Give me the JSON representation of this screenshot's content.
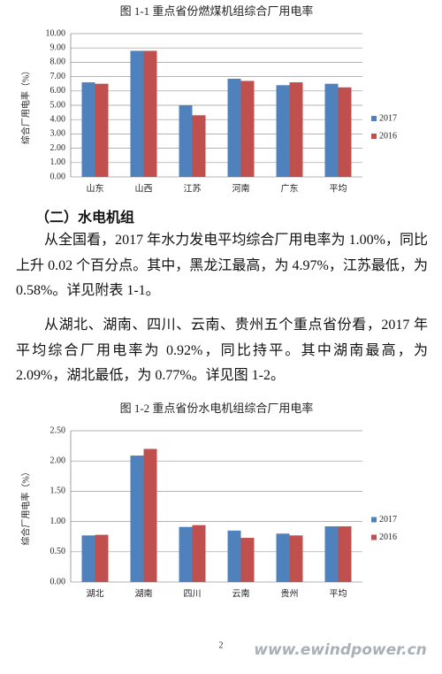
{
  "chart_data": [
    {
      "type": "bar",
      "title": "图 1-1 重点省份燃煤机组综合厂用电率",
      "y_label": "综合厂用电率（%）",
      "categories": [
        "山东",
        "山西",
        "江苏",
        "河南",
        "广东",
        "平均"
      ],
      "series": [
        {
          "name": "2017",
          "color": "#4f81bd",
          "values": [
            6.6,
            8.8,
            5.0,
            6.85,
            6.4,
            6.5
          ]
        },
        {
          "name": "2016",
          "color": "#c0504d",
          "values": [
            6.5,
            8.8,
            4.3,
            6.7,
            6.6,
            6.25
          ]
        }
      ],
      "ylim": [
        0,
        10
      ],
      "yticks": [
        {
          "value": 0,
          "label": "0.00"
        },
        {
          "value": 1,
          "label": "1.00"
        },
        {
          "value": 2,
          "label": "2.00"
        },
        {
          "value": 3,
          "label": "3.00"
        },
        {
          "value": 4,
          "label": "4.00"
        },
        {
          "value": 5,
          "label": "5.00"
        },
        {
          "value": 6,
          "label": "6.00"
        },
        {
          "value": 7,
          "label": "7.00"
        },
        {
          "value": 8,
          "label": "8.00"
        },
        {
          "value": 9,
          "label": "9.00"
        },
        {
          "value": 10,
          "label": "10.00"
        }
      ],
      "grid": true,
      "legend": "right"
    },
    {
      "type": "bar",
      "title": "图 1-2 重点省份水电机组综合厂用电率",
      "y_label": "综合厂用电率（%）",
      "categories": [
        "湖北",
        "湖南",
        "四川",
        "云南",
        "贵州",
        "平均"
      ],
      "series": [
        {
          "name": "2017",
          "color": "#4f81bd",
          "values": [
            0.77,
            2.09,
            0.91,
            0.85,
            0.8,
            0.92
          ]
        },
        {
          "name": "2016",
          "color": "#c0504d",
          "values": [
            0.78,
            2.2,
            0.94,
            0.73,
            0.77,
            0.92
          ]
        }
      ],
      "ylim": [
        0,
        2.5
      ],
      "yticks": [
        {
          "value": 0,
          "label": "0.00"
        },
        {
          "value": 0.5,
          "label": "0.50"
        },
        {
          "value": 1,
          "label": "1.00"
        },
        {
          "value": 1.5,
          "label": "1.50"
        },
        {
          "value": 2,
          "label": "2.00"
        },
        {
          "value": 2.5,
          "label": "2.50"
        }
      ],
      "grid": true,
      "legend": "right"
    }
  ],
  "document": {
    "heading": "（二）水电机组",
    "paragraphs": [
      "从全国看，2017 年水力发电平均综合厂用电率为 1.00%，同比上升 0.02 个百分点。其中，黑龙江最高，为 4.97%，江苏最低，为 0.58%。详见附表 1-1。",
      "从湖北、湖南、四川、云南、贵州五个重点省份看，2017 年平均综合厂用电率为 0.92%，同比持平。其中湖南最高，为 2.09%，湖北最低，为 0.77%。详见图 1-2。"
    ],
    "page_number": "2",
    "watermark": "www.ewindpower.cn"
  }
}
